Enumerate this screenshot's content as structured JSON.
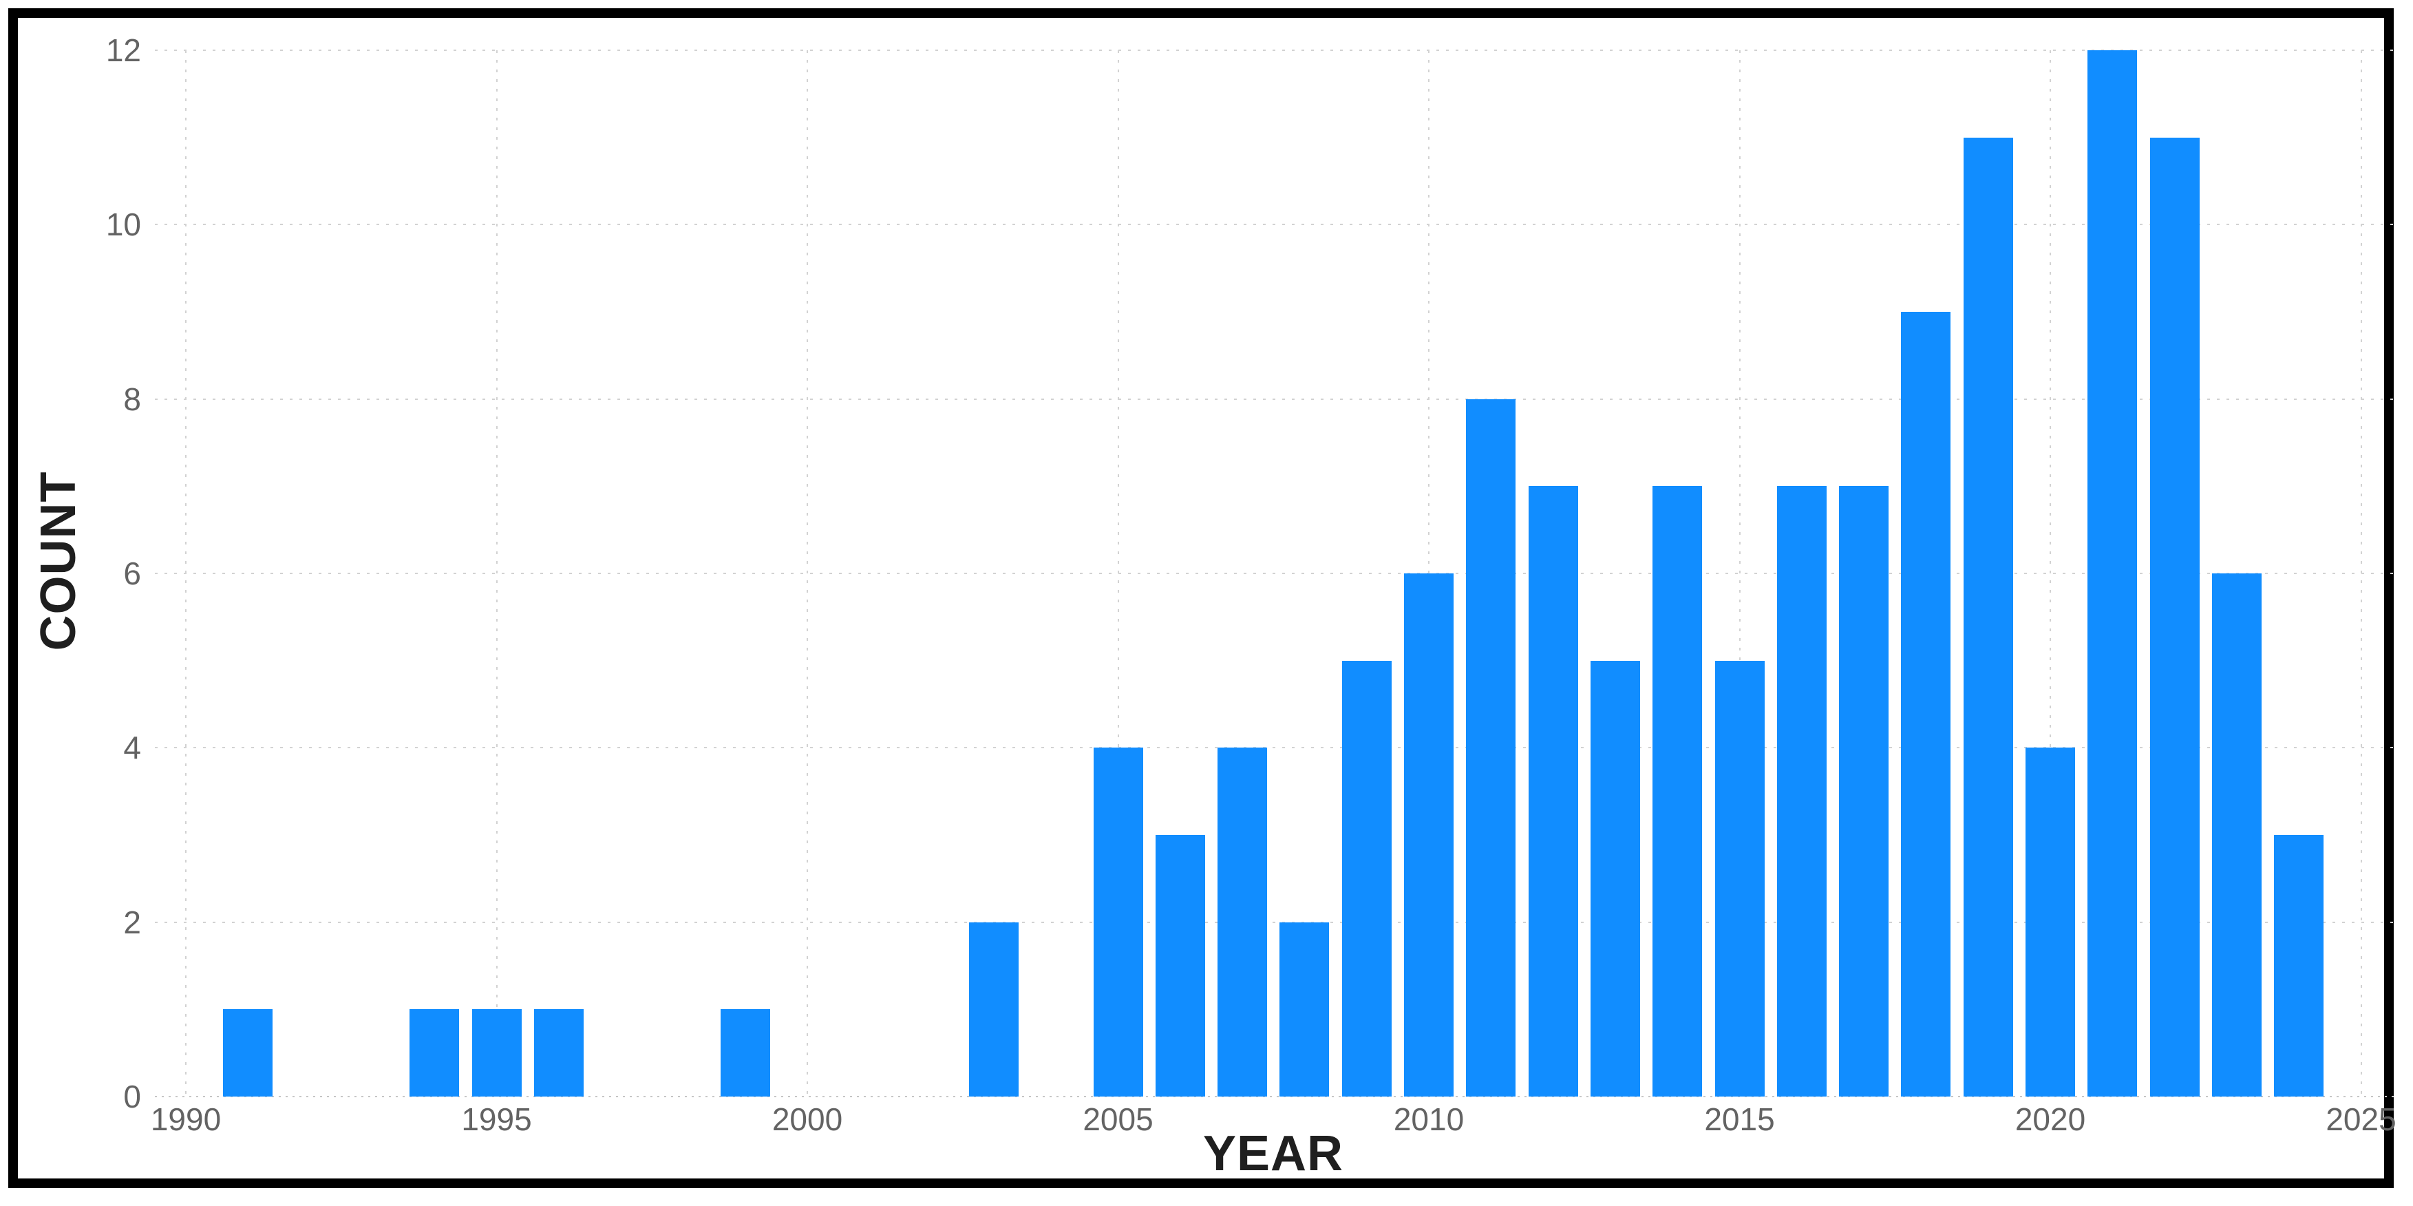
{
  "window": {
    "background": "#ffffff",
    "border_color": "#000000"
  },
  "chart_data": {
    "type": "bar",
    "title": "",
    "xlabel": "YEAR",
    "ylabel": "COUNT",
    "categories": [
      1991,
      1994,
      1995,
      1996,
      1999,
      2003,
      2005,
      2006,
      2007,
      2008,
      2009,
      2010,
      2011,
      2012,
      2013,
      2014,
      2015,
      2016,
      2017,
      2018,
      2019,
      2020,
      2021,
      2022,
      2023,
      2024
    ],
    "values": [
      1,
      1,
      1,
      1,
      1,
      2,
      4,
      3,
      4,
      2,
      5,
      6,
      8,
      7,
      5,
      7,
      5,
      7,
      7,
      9,
      11,
      4,
      12,
      11,
      6,
      3
    ],
    "xticks": [
      1990,
      1995,
      2000,
      2005,
      2010,
      2015,
      2020,
      2025
    ],
    "yticks": [
      0,
      2,
      4,
      6,
      8,
      10,
      12
    ],
    "xlim": [
      1989.5,
      2025.6
    ],
    "ylim": [
      0,
      12.6
    ],
    "grid": "dotted",
    "legend": "none",
    "colors": {
      "bar": "#118DFF",
      "gridline": "#d2d2d2",
      "tick_label": "#636363",
      "axis_title": "#1f1f1f",
      "frame_border": "#000000"
    }
  }
}
